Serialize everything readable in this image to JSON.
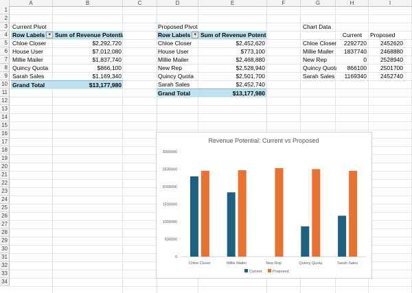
{
  "columns": [
    "A",
    "B",
    "C",
    "D",
    "E",
    "F",
    "G",
    "H",
    "I"
  ],
  "rows": [
    "1",
    "2",
    "3",
    "4",
    "5",
    "6",
    "7",
    "8",
    "9",
    "10",
    "11",
    "12",
    "13",
    "14",
    "15",
    "16",
    "17",
    "18",
    "19",
    "20",
    "21",
    "22",
    "23",
    "24",
    "25",
    "26",
    "27",
    "28",
    "29",
    "30",
    "31",
    "32",
    "33",
    "34"
  ],
  "current_pivot": {
    "title": "Current Pivot",
    "row_labels_header": "Row Labels",
    "sum_header": "Sum of Revenue Potential",
    "rows": [
      {
        "label": "Chloe Closer",
        "value": "$2,292,720"
      },
      {
        "label": "House User",
        "value": "$7,012,080"
      },
      {
        "label": "Millie Mailer",
        "value": "$1,837,740"
      },
      {
        "label": "Quincy Quota",
        "value": "$866,100"
      },
      {
        "label": "Sarah Sales",
        "value": "$1,169,340"
      }
    ],
    "grand_total_label": "Grand Total",
    "grand_total_value": "$13,177,980"
  },
  "proposed_pivot": {
    "title": "Proposed Pivot",
    "row_labels_header": "Row Labels",
    "sum_header": "Sum of Revenue Potential",
    "rows": [
      {
        "label": "Chloe Closer",
        "value": "$2,452,620"
      },
      {
        "label": "House User",
        "value": "$773,100"
      },
      {
        "label": "Millie Mailer",
        "value": "$2,468,880"
      },
      {
        "label": "New Rep",
        "value": "$2,528,940"
      },
      {
        "label": "Quincy Quota",
        "value": "$2,501,700"
      },
      {
        "label": "Sarah Sales",
        "value": "$2,452,740"
      }
    ],
    "grand_total_label": "Grand Total",
    "grand_total_value": "$13,177,980"
  },
  "chart_table": {
    "title": "Chart Data",
    "headers": [
      "Current",
      "Proposed"
    ],
    "rows": [
      {
        "label": "Chloe Closer",
        "current": "2292720",
        "proposed": "2452620"
      },
      {
        "label": "Millie Mailer",
        "current": "1837740",
        "proposed": "2468880"
      },
      {
        "label": "New Rep",
        "current": "0",
        "proposed": "2528940"
      },
      {
        "label": "Quincy Quota",
        "current": "866100",
        "proposed": "2501700"
      },
      {
        "label": "Sarah Sales",
        "current": "1169340",
        "proposed": "2452740"
      }
    ]
  },
  "colors": {
    "pivot_header": "#bde1ee",
    "current": "#1f5f7f",
    "proposed": "#e97132"
  },
  "chart_data": {
    "type": "bar",
    "title": "Revenue Potential: Current vs Proposed",
    "categories": [
      "Chloe Closer",
      "Millie Mailer",
      "New Rep",
      "Quincy Quota",
      "Sarah Sales"
    ],
    "series": [
      {
        "name": "Current",
        "values": [
          2292720,
          1837740,
          0,
          866100,
          1169340
        ]
      },
      {
        "name": "Proposed",
        "values": [
          2452620,
          2468880,
          2528940,
          2501700,
          2452740
        ]
      }
    ],
    "ylim": [
      0,
      3000000
    ],
    "yticks": [
      "0",
      "500000",
      "1000000",
      "1500000",
      "2000000",
      "2500000",
      "3000000"
    ],
    "legend_position": "bottom",
    "grid": false
  }
}
